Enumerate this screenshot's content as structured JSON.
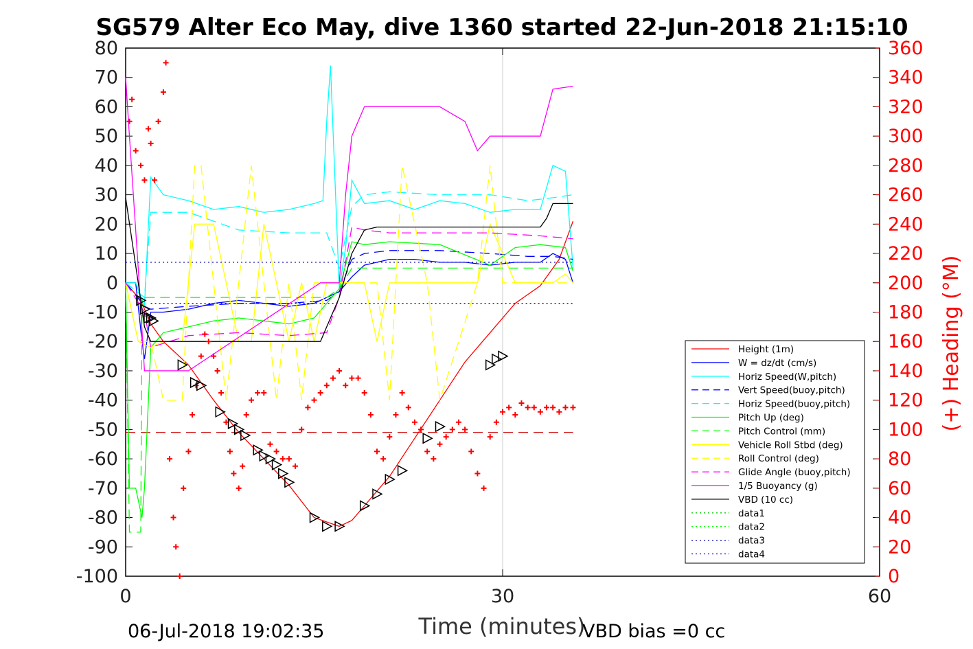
{
  "chart_data": {
    "type": "line",
    "title": "SG579 Alter Eco May, dive 1360 started 22-Jun-2018 21:15:10",
    "xlabel": "Time (minutes)",
    "ylabel": "",
    "ylabel_right": "(+) Heading (°M)",
    "xlim": [
      0,
      60
    ],
    "ylim": [
      -100,
      80
    ],
    "ylim_right": [
      0,
      360
    ],
    "x_ticks": [
      "0",
      "30",
      "60"
    ],
    "y_ticks": [
      "80",
      "70",
      "60",
      "50",
      "40",
      "30",
      "20",
      "10",
      "0",
      "-10",
      "-20",
      "-30",
      "-40",
      "-50",
      "-60",
      "-70",
      "-80",
      "-90",
      "-100"
    ],
    "y_ticks_right": [
      "360",
      "340",
      "320",
      "300",
      "280",
      "260",
      "240",
      "220",
      "200",
      "180",
      "160",
      "140",
      "120",
      "100",
      "80",
      "60",
      "40",
      "20",
      "0"
    ],
    "grid_x": [
      30
    ],
    "legend_position": "lower-right",
    "footer_left": "06-Jul-2018 19:02:35",
    "footer_right": "VBD bias =0 cc",
    "colors": {
      "red": "#ff0000",
      "blue": "#0000ff",
      "cyan": "#00ffff",
      "green": "#00ff00",
      "yellow": "#ffff00",
      "magenta": "#ff00ff",
      "black": "#000000",
      "darkgreen": "#00cc00",
      "navy": "#0000aa"
    },
    "series": [
      {
        "name": "Height (1m)",
        "color": "#ff0000",
        "dash": "",
        "x": [
          0,
          1.2,
          2,
          3,
          5,
          7,
          9,
          11,
          13,
          15,
          17,
          18,
          19,
          21,
          23,
          25,
          27,
          29,
          31,
          33,
          34.5,
          35.6
        ],
        "y": [
          0,
          -6,
          -14,
          -20,
          -28,
          -40,
          -51,
          -60,
          -69,
          -80,
          -83,
          -81,
          -76,
          -66,
          -53,
          -40,
          -27,
          -17,
          -7,
          -1,
          8,
          21
        ]
      },
      {
        "name": "W = dz/dt (cm/s)",
        "color": "#0000ff",
        "dash": "",
        "x": [
          0,
          0.8,
          1.3,
          1.5,
          2,
          3,
          5,
          7,
          9,
          11,
          13,
          15,
          16,
          17,
          18,
          19,
          21,
          23,
          25,
          27,
          29,
          31,
          33,
          34,
          35,
          35.6
        ],
        "y": [
          0,
          0,
          -20,
          -26,
          -10,
          -10,
          -9,
          -7,
          -6,
          -7,
          -8,
          -7,
          -5,
          -3,
          2,
          6,
          8,
          8,
          7,
          7,
          6,
          7,
          7,
          10,
          8,
          0
        ]
      },
      {
        "name": "Horiz Speed(W,pitch)",
        "color": "#00ffff",
        "dash": "",
        "x": [
          0,
          0.8,
          1.5,
          2,
          3,
          5,
          7,
          9,
          11,
          13,
          15,
          15.7,
          16,
          16.3,
          17,
          17.5,
          18,
          19,
          21,
          23,
          25,
          27,
          29,
          31,
          33,
          34,
          35,
          35.6
        ],
        "y": [
          0,
          0,
          -8,
          36,
          30,
          28,
          25,
          26,
          24,
          25,
          27,
          28,
          55,
          74,
          -2,
          12,
          35,
          27,
          28,
          25,
          28,
          27,
          24,
          25,
          25,
          40,
          38,
          5
        ]
      },
      {
        "name": "Vert Speed(buoy,pitch)",
        "color": "#0000ff",
        "dash": "14,8",
        "x": [
          0,
          1.5,
          2,
          5,
          9,
          13,
          16,
          17,
          18,
          19,
          21,
          25,
          29,
          32,
          34,
          35.6
        ],
        "y": [
          0,
          -8,
          -9,
          -8,
          -7,
          -7,
          -6,
          -3,
          8,
          10,
          11,
          11,
          10,
          9,
          9,
          8
        ]
      },
      {
        "name": "Horiz Speed(buoy,pitch)",
        "color": "#00ffff",
        "dash": "14,8",
        "x": [
          0,
          1.5,
          2,
          5,
          9,
          13,
          16,
          17,
          18,
          19,
          21,
          25,
          29,
          32,
          34,
          35.6
        ],
        "y": [
          0,
          -5,
          24,
          24,
          18,
          17,
          17,
          5,
          26,
          30,
          31,
          30,
          30,
          28,
          29,
          30
        ]
      },
      {
        "name": "Pitch Up (deg)",
        "color": "#00ff00",
        "dash": "",
        "x": [
          0,
          0.3,
          0.8,
          1.3,
          1.5,
          2,
          3,
          5,
          7,
          9,
          11,
          13,
          15,
          16,
          17,
          18,
          19,
          21,
          25,
          29,
          31,
          33,
          35,
          35.6
        ],
        "y": [
          0,
          -70,
          -70,
          -80,
          -70,
          -22,
          -17,
          -15,
          -13,
          -12,
          -13,
          -14,
          -12,
          -7,
          -2,
          14,
          13,
          14,
          13,
          6,
          12,
          13,
          12,
          4
        ]
      },
      {
        "name": "Pitch Control (mm)",
        "color": "#00ff00",
        "dash": "14,8",
        "x": [
          0,
          0.3,
          1.2,
          1.3,
          2,
          16,
          17,
          18,
          35.6
        ],
        "y": [
          0,
          -85,
          -85,
          -5,
          -5,
          -5,
          -2,
          5,
          5
        ]
      },
      {
        "name": "Vehicle Roll Stbd (deg)",
        "color": "#ffff00",
        "dash": "",
        "x": [
          0,
          1,
          2,
          3,
          4.5,
          5,
          5.5,
          7,
          8,
          9,
          10,
          11,
          12,
          13,
          14,
          15,
          16,
          17,
          18,
          19,
          20,
          21,
          22,
          23,
          24,
          25,
          27,
          28,
          29,
          31,
          33,
          34,
          35,
          35.6
        ],
        "y": [
          0,
          -20,
          -22,
          -20,
          -20,
          0,
          20,
          20,
          0,
          -20,
          -20,
          20,
          0,
          -20,
          0,
          -20,
          0,
          0,
          0,
          0,
          -20,
          0,
          0,
          0,
          0,
          0,
          0,
          0,
          20,
          0,
          0,
          0,
          3,
          0
        ]
      },
      {
        "name": "Roll Control (deg)",
        "color": "#ffff00",
        "dash": "14,8",
        "x": [
          0,
          1,
          2,
          3,
          4.5,
          5,
          5.5,
          6,
          7,
          8,
          9,
          10,
          11,
          12,
          13,
          14,
          15,
          16,
          17,
          20,
          21,
          22,
          24,
          25,
          28,
          29,
          30,
          31,
          35.6
        ],
        "y": [
          0,
          -20,
          -20,
          -40,
          -40,
          0,
          40,
          40,
          0,
          -40,
          0,
          40,
          0,
          -40,
          0,
          -40,
          0,
          0,
          0,
          0,
          -40,
          40,
          0,
          -40,
          0,
          40,
          0,
          0,
          0
        ]
      },
      {
        "name": "Glide Angle (buoy,pitch)",
        "color": "#ff00ff",
        "dash": "14,8",
        "x": [
          0,
          1.5,
          2,
          5,
          9,
          13,
          16,
          17,
          18,
          19,
          21,
          25,
          29,
          33,
          35.6
        ],
        "y": [
          0,
          -10,
          -22,
          -18,
          -17,
          -18,
          -17,
          -5,
          19,
          18,
          17,
          17,
          17,
          16,
          15
        ]
      },
      {
        "name": "1/5 Buoyancy (g)",
        "color": "#ff00ff",
        "dash": "",
        "x": [
          0,
          0.3,
          1,
          1.5,
          2,
          5,
          15.5,
          16,
          17,
          17.5,
          18,
          19,
          20,
          25,
          27,
          28,
          29,
          31,
          33,
          34,
          35.6
        ],
        "y": [
          70,
          50,
          5,
          -30,
          -30,
          -30,
          0,
          0,
          0,
          30,
          50,
          60,
          60,
          60,
          55,
          45,
          50,
          50,
          50,
          66,
          67
        ]
      },
      {
        "name": "VBD (10 cc)",
        "color": "#000000",
        "dash": "",
        "x": [
          0,
          1,
          1.5,
          2,
          4,
          6,
          15,
          15.5,
          16,
          17,
          18,
          19,
          20,
          25,
          30,
          33,
          33.5,
          34,
          35.6
        ],
        "y": [
          29,
          0,
          -15,
          -20,
          -20,
          -20,
          -20,
          -20,
          -15,
          -5,
          10,
          18,
          19,
          19,
          19,
          19,
          22,
          27,
          27
        ]
      },
      {
        "name": "data1",
        "color": "#00cc00",
        "dash": "2,4",
        "x": [],
        "y": []
      },
      {
        "name": "data2",
        "color": "#00ff00",
        "dash": "2,4",
        "x": [],
        "y": []
      },
      {
        "name": "data3",
        "color": "#0000aa",
        "dash": "2,4",
        "x": [
          0,
          35.6
        ],
        "y": [
          7,
          7
        ]
      },
      {
        "name": "data4",
        "color": "#0000ff",
        "dash": "2,4",
        "x": [
          2,
          35.6
        ],
        "y": [
          -7,
          -7
        ]
      }
    ],
    "reference_line": {
      "color": "#cc0000",
      "dash": "14,8",
      "x": [
        0,
        35.6
      ],
      "y": [
        -51,
        -51
      ]
    },
    "heading_series": {
      "color": "#ff0000",
      "axis": "right",
      "x": [
        0.3,
        0.5,
        0.8,
        1.2,
        1.5,
        1.8,
        2,
        2.3,
        2.6,
        3,
        3.2,
        3.5,
        3.8,
        4,
        4.3,
        4.6,
        5,
        5.3,
        5.6,
        6,
        6.3,
        6.6,
        7,
        7.3,
        7.6,
        8,
        8.3,
        8.6,
        9,
        9.3,
        9.6,
        10,
        10.5,
        11,
        11.5,
        12,
        12.5,
        13,
        13.5,
        14,
        14.5,
        15,
        15.5,
        16,
        16.5,
        17,
        17.5,
        18,
        18.5,
        19,
        19.5,
        20,
        20.5,
        21,
        21.5,
        22,
        22.5,
        23,
        23.5,
        24,
        24.5,
        25,
        25.5,
        26,
        26.5,
        27,
        27.5,
        28,
        28.5,
        29,
        29.5,
        30,
        30.5,
        31,
        31.5,
        32,
        32.5,
        33,
        33.5,
        34,
        34.5,
        35,
        35.6
      ],
      "y": [
        310,
        325,
        290,
        280,
        270,
        305,
        295,
        270,
        310,
        330,
        350,
        80,
        40,
        20,
        0,
        60,
        85,
        110,
        130,
        150,
        165,
        160,
        150,
        140,
        125,
        105,
        85,
        70,
        60,
        75,
        110,
        120,
        125,
        125,
        90,
        85,
        80,
        80,
        75,
        100,
        115,
        120,
        125,
        130,
        135,
        140,
        130,
        135,
        135,
        125,
        110,
        85,
        80,
        95,
        110,
        125,
        115,
        105,
        100,
        85,
        80,
        90,
        95,
        100,
        105,
        100,
        85,
        70,
        60,
        95,
        105,
        112,
        115,
        110,
        118,
        115,
        115,
        112,
        115,
        115,
        112,
        115,
        115
      ]
    },
    "triangle_markers": {
      "color": "#000000",
      "x": [
        1.2,
        1.5,
        1.8,
        2,
        2.2,
        4.5,
        5.5,
        6,
        7.5,
        8.5,
        9,
        9.5,
        10.5,
        11,
        11.5,
        12,
        12.5,
        13,
        15,
        16,
        17,
        19,
        20,
        21,
        22,
        24,
        25,
        29,
        29.5,
        30
      ],
      "y": [
        -6,
        -9,
        -12,
        -12,
        -13,
        -28,
        -34,
        -35,
        -44,
        -48,
        -50,
        -52,
        -57,
        -59,
        -60,
        -62,
        -65,
        -68,
        -80,
        -83,
        -83,
        -76,
        -72,
        -67,
        -64,
        -53,
        -49,
        -28,
        -26,
        -25
      ]
    }
  }
}
